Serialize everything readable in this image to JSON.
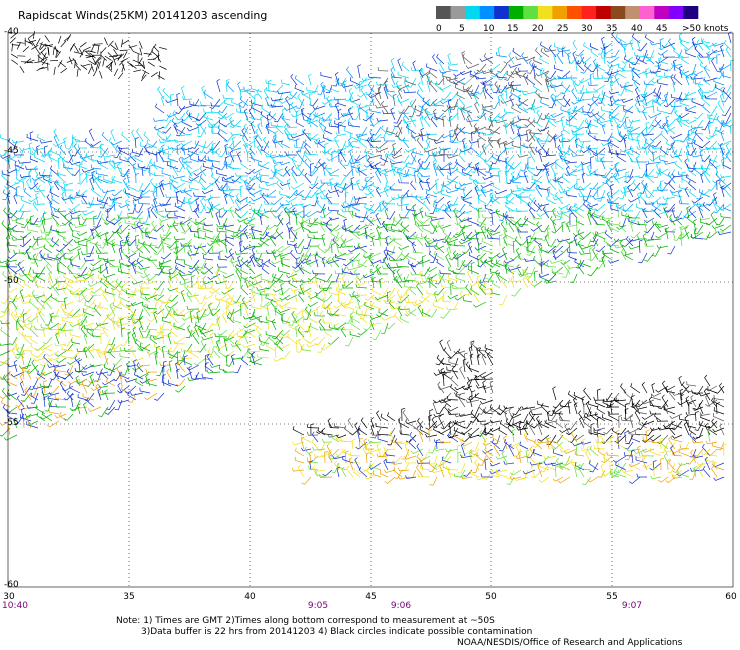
{
  "title": "Rapidscat Winds(25KM) 20141203 ascending",
  "legend": {
    "labels": [
      "0",
      "5",
      "10",
      "15",
      "20",
      "25",
      "30",
      "35",
      "40",
      "45",
      ">50 knots"
    ],
    "colors": [
      "#555555",
      "#9a9a9a",
      "#00d8f0",
      "#0090ff",
      "#1030d0",
      "#00b000",
      "#60e040",
      "#f0e020",
      "#f0a000",
      "#ff5000",
      "#ff2020",
      "#c00000",
      "#8a4a20",
      "#c09070",
      "#ff60d0",
      "#c000c0",
      "#8000ff",
      "#200080"
    ]
  },
  "axes": {
    "lat_labels": [
      "-40",
      "-45",
      "-50",
      "-55",
      "-60"
    ],
    "lon_labels": [
      "30",
      "35",
      "40",
      "45",
      "50",
      "55",
      "60"
    ],
    "time_labels": [
      {
        "text": "10:40",
        "lon": 30
      },
      {
        "text": "9:05",
        "lon": 42.9
      },
      {
        "text": "9:06",
        "lon": 47.4
      },
      {
        "text": "9:07",
        "lon": 56.6
      }
    ]
  },
  "notes": {
    "line1": "Note: 1) Times are GMT 2)Times along bottom correspond to measurement at ~50S",
    "line2": "3)Data buffer is 22 hrs from 20141203 4) Black circles indicate possible contamination",
    "line3": "NOAA/NESDIS/Office of Research and Applications"
  },
  "map": {
    "lat_range": [
      -60,
      -40
    ],
    "lon_range": [
      30,
      60
    ],
    "grid": "dotted"
  }
}
